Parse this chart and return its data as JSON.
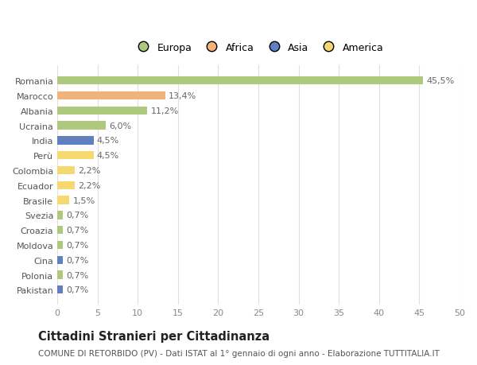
{
  "countries": [
    "Romania",
    "Marocco",
    "Albania",
    "Ucraina",
    "India",
    "Perù",
    "Colombia",
    "Ecuador",
    "Brasile",
    "Svezia",
    "Croazia",
    "Moldova",
    "Cina",
    "Polonia",
    "Pakistan"
  ],
  "values": [
    45.5,
    13.4,
    11.2,
    6.0,
    4.5,
    4.5,
    2.2,
    2.2,
    1.5,
    0.7,
    0.7,
    0.7,
    0.7,
    0.7,
    0.7
  ],
  "labels": [
    "45,5%",
    "13,4%",
    "11,2%",
    "6,0%",
    "4,5%",
    "4,5%",
    "2,2%",
    "2,2%",
    "1,5%",
    "0,7%",
    "0,7%",
    "0,7%",
    "0,7%",
    "0,7%",
    "0,7%"
  ],
  "colors": [
    "#aec87e",
    "#f2b27a",
    "#aec87e",
    "#aec87e",
    "#6080c0",
    "#f5d870",
    "#f5d870",
    "#f5d870",
    "#f5d870",
    "#aec87e",
    "#aec87e",
    "#aec87e",
    "#6080c0",
    "#aec87e",
    "#6080c0"
  ],
  "legend_labels": [
    "Europa",
    "Africa",
    "Asia",
    "America"
  ],
  "legend_colors": [
    "#aec87e",
    "#f2b27a",
    "#6080c0",
    "#f5d870"
  ],
  "xlim": [
    0,
    50
  ],
  "xticks": [
    0,
    5,
    10,
    15,
    20,
    25,
    30,
    35,
    40,
    45,
    50
  ],
  "title": "Cittadini Stranieri per Cittadinanza",
  "subtitle": "COMUNE DI RETORBIDO (PV) - Dati ISTAT al 1° gennaio di ogni anno - Elaborazione TUTTITALIA.IT",
  "bg_color": "#ffffff",
  "grid_color": "#e0e0e0",
  "bar_height": 0.55,
  "label_fontsize": 8,
  "tick_fontsize": 8,
  "title_fontsize": 10.5,
  "subtitle_fontsize": 7.5
}
